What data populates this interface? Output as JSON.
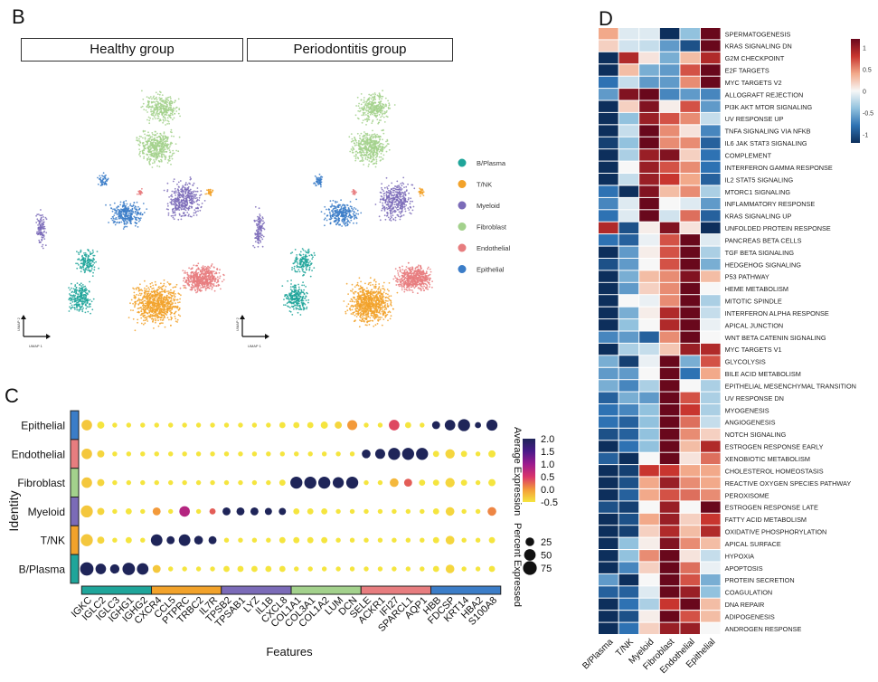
{
  "panels": {
    "b": {
      "letter": "B",
      "facets": [
        "Healthy group",
        "Periodontitis group"
      ],
      "axis_x": "UMAP 1",
      "axis_y": "UMAP 2"
    },
    "c": {
      "letter": "C"
    },
    "d": {
      "letter": "D"
    }
  },
  "chart_data": [
    {
      "type": "scatter",
      "name": "umap",
      "title": "",
      "facets": [
        "Healthy group",
        "Periodontitis group"
      ],
      "xlabel": "UMAP 1",
      "ylabel": "UMAP 2",
      "legend_position": "right",
      "legend": [
        {
          "label": "B/Plasma",
          "color": "#1fa59a"
        },
        {
          "label": "T/NK",
          "color": "#f2a22a"
        },
        {
          "label": "Myeloid",
          "color": "#7b6bb8"
        },
        {
          "label": "Fibroblast",
          "color": "#a3d18c"
        },
        {
          "label": "Endothelial",
          "color": "#e77d7f"
        },
        {
          "label": "Epithelial",
          "color": "#3b7dc8"
        }
      ],
      "clusters": [
        {
          "cell_type": "Fibroblast",
          "center": [
            0.62,
            0.12
          ],
          "spread": [
            0.1,
            0.07
          ],
          "n": 300
        },
        {
          "cell_type": "Fibroblast",
          "center": [
            0.6,
            0.26
          ],
          "spread": [
            0.11,
            0.08
          ],
          "n": 450
        },
        {
          "cell_type": "Myeloid",
          "center": [
            0.72,
            0.45
          ],
          "spread": [
            0.1,
            0.09
          ],
          "n": 380
        },
        {
          "cell_type": "Myeloid",
          "center": [
            0.1,
            0.55
          ],
          "spread": [
            0.03,
            0.09
          ],
          "n": 120
        },
        {
          "cell_type": "Epithelial",
          "center": [
            0.47,
            0.5
          ],
          "spread": [
            0.1,
            0.06
          ],
          "n": 300
        },
        {
          "cell_type": "Epithelial",
          "center": [
            0.37,
            0.38
          ],
          "spread": [
            0.03,
            0.03
          ],
          "n": 50
        },
        {
          "cell_type": "Endothelial",
          "center": [
            0.53,
            0.42
          ],
          "spread": [
            0.015,
            0.015
          ],
          "n": 20
        },
        {
          "cell_type": "T/NK",
          "center": [
            0.83,
            0.42
          ],
          "spread": [
            0.02,
            0.02
          ],
          "n": 30
        },
        {
          "cell_type": "B/Plasma",
          "center": [
            0.3,
            0.67
          ],
          "spread": [
            0.06,
            0.06
          ],
          "n": 160
        },
        {
          "cell_type": "B/Plasma",
          "center": [
            0.27,
            0.8
          ],
          "spread": [
            0.07,
            0.07
          ],
          "n": 250
        },
        {
          "cell_type": "T/NK",
          "center": [
            0.6,
            0.82
          ],
          "spread": [
            0.13,
            0.1
          ],
          "n": 800
        },
        {
          "cell_type": "Endothelial",
          "center": [
            0.8,
            0.73
          ],
          "spread": [
            0.11,
            0.06
          ],
          "n": 550
        }
      ]
    },
    {
      "type": "scatter",
      "name": "dotplot",
      "xlabel": "Features",
      "ylabel": "Identity",
      "rows": [
        "Epithelial",
        "Endothelial",
        "Fibroblast",
        "Myeloid",
        "T/NK",
        "B/Plasma"
      ],
      "row_colors": [
        "#3b7dc8",
        "#e77d7f",
        "#a3d18c",
        "#7b6bb8",
        "#f2a22a",
        "#1fa59a"
      ],
      "features": [
        "IGKC",
        "IGLC2",
        "IGLC3",
        "IGHG1",
        "IGHG2",
        "CXCR4",
        "CCL5",
        "PTPRC",
        "TRBC2",
        "IL7R",
        "TPSB2",
        "TPSAB1",
        "LYZ",
        "IL1B",
        "CXCL8",
        "COL1A1",
        "COL3A1",
        "COL1A2",
        "LUM",
        "DCN",
        "SELE",
        "ACKR1",
        "IFI27",
        "SPARCL1",
        "AQP1",
        "HBB",
        "FDCSP",
        "KRT14",
        "HBA2",
        "S100A8"
      ],
      "feature_groups": [
        {
          "group": "B/Plasma",
          "color": "#1fa59a",
          "count": 5
        },
        {
          "group": "T/NK",
          "color": "#f2a22a",
          "count": 5
        },
        {
          "group": "Myeloid",
          "color": "#7b6bb8",
          "count": 5
        },
        {
          "group": "Fibroblast",
          "color": "#a3d18c",
          "count": 5
        },
        {
          "group": "Endothelial",
          "color": "#e77d7f",
          "count": 5
        },
        {
          "group": "Epithelial",
          "color": "#3b7dc8",
          "count": 5
        }
      ],
      "avg_expression": [
        [
          -0.3,
          -0.5,
          -0.5,
          -0.5,
          -0.5,
          -0.5,
          -0.5,
          -0.5,
          -0.5,
          -0.5,
          -0.5,
          -0.5,
          -0.5,
          -0.5,
          -0.5,
          -0.5,
          -0.5,
          -0.5,
          -0.4,
          0.0,
          -0.5,
          -0.5,
          0.4,
          -0.5,
          -0.5,
          2.0,
          2.0,
          2.0,
          2.0,
          2.0
        ],
        [
          -0.3,
          -0.4,
          -0.5,
          -0.5,
          -0.5,
          -0.5,
          -0.5,
          -0.5,
          -0.5,
          -0.5,
          -0.5,
          -0.5,
          -0.5,
          -0.5,
          -0.5,
          -0.5,
          -0.5,
          -0.5,
          -0.5,
          -0.5,
          2.0,
          2.0,
          2.0,
          2.0,
          2.0,
          -0.5,
          -0.4,
          -0.5,
          -0.5,
          -0.5
        ],
        [
          -0.3,
          -0.4,
          -0.5,
          -0.5,
          -0.5,
          -0.5,
          -0.5,
          -0.5,
          -0.5,
          -0.5,
          -0.5,
          -0.5,
          -0.5,
          -0.5,
          -0.5,
          2.0,
          2.0,
          2.0,
          2.0,
          2.0,
          -0.5,
          -0.5,
          -0.2,
          0.3,
          -0.5,
          -0.5,
          -0.4,
          -0.5,
          -0.5,
          -0.5
        ],
        [
          -0.3,
          -0.4,
          -0.5,
          -0.5,
          -0.5,
          0.0,
          -0.5,
          0.8,
          -0.5,
          0.3,
          2.0,
          2.0,
          2.0,
          2.0,
          2.0,
          -0.5,
          -0.5,
          -0.5,
          -0.5,
          -0.5,
          -0.5,
          -0.5,
          -0.5,
          -0.5,
          -0.5,
          -0.5,
          -0.4,
          -0.5,
          -0.5,
          0.1
        ],
        [
          -0.3,
          -0.4,
          -0.5,
          -0.5,
          -0.5,
          2.0,
          2.0,
          2.0,
          2.0,
          2.0,
          -0.5,
          -0.5,
          -0.5,
          -0.5,
          -0.5,
          -0.5,
          -0.5,
          -0.5,
          -0.5,
          -0.5,
          -0.5,
          -0.5,
          -0.5,
          -0.5,
          -0.5,
          -0.5,
          -0.4,
          -0.5,
          -0.5,
          -0.5
        ],
        [
          2.0,
          2.0,
          2.0,
          2.0,
          2.0,
          -0.3,
          -0.5,
          -0.5,
          -0.5,
          -0.5,
          -0.5,
          -0.5,
          -0.5,
          -0.5,
          -0.5,
          -0.5,
          -0.5,
          -0.5,
          -0.5,
          -0.5,
          -0.5,
          -0.5,
          -0.5,
          -0.5,
          -0.5,
          -0.5,
          -0.4,
          -0.5,
          -0.5,
          -0.5
        ]
      ],
      "pct_expressed": [
        [
          40,
          15,
          5,
          5,
          5,
          5,
          5,
          5,
          5,
          5,
          5,
          5,
          5,
          5,
          10,
          10,
          10,
          15,
          15,
          35,
          5,
          5,
          40,
          10,
          5,
          20,
          40,
          55,
          10,
          45
        ],
        [
          40,
          15,
          5,
          5,
          5,
          5,
          5,
          5,
          5,
          5,
          5,
          5,
          5,
          5,
          5,
          5,
          5,
          5,
          5,
          5,
          25,
          35,
          55,
          55,
          55,
          10,
          30,
          10,
          5,
          15
        ],
        [
          40,
          15,
          5,
          5,
          5,
          5,
          5,
          5,
          5,
          5,
          5,
          5,
          5,
          5,
          10,
          55,
          55,
          55,
          45,
          55,
          5,
          5,
          25,
          20,
          10,
          10,
          30,
          10,
          5,
          15
        ],
        [
          55,
          15,
          5,
          10,
          5,
          20,
          5,
          40,
          5,
          10,
          20,
          20,
          20,
          15,
          15,
          10,
          10,
          10,
          5,
          5,
          5,
          5,
          5,
          5,
          5,
          10,
          25,
          5,
          5,
          25
        ],
        [
          55,
          15,
          5,
          10,
          5,
          50,
          20,
          50,
          25,
          20,
          5,
          5,
          5,
          5,
          10,
          10,
          10,
          10,
          5,
          5,
          5,
          5,
          5,
          5,
          5,
          10,
          25,
          5,
          5,
          10
        ],
        [
          70,
          40,
          30,
          60,
          50,
          20,
          5,
          5,
          5,
          5,
          10,
          10,
          10,
          10,
          10,
          5,
          5,
          5,
          5,
          5,
          5,
          5,
          5,
          5,
          5,
          10,
          25,
          5,
          5,
          10
        ]
      ],
      "color_scale": {
        "label": "Average Expression",
        "min": -0.5,
        "max": 2.0,
        "ticks": [
          "2.0",
          "1.5",
          "1.0",
          "0.5",
          "0.0",
          "-0.5"
        ],
        "colors": [
          "#f5e53f",
          "#f39a3a",
          "#d9346b",
          "#9b1b8e",
          "#4a1a8a",
          "#1f2559"
        ]
      },
      "size_scale": {
        "label": "Percent Expressed",
        "ticks": [
          "25",
          "50",
          "75"
        ]
      }
    },
    {
      "type": "heatmap",
      "name": "pathway-heatmap",
      "columns": [
        "B/Plasma",
        "T/NK",
        "Myeloid",
        "Fibroblast",
        "Endothelial",
        "Epithelial"
      ],
      "rows": [
        "SPERMATOGENESIS",
        "KRAS SIGNALING DN",
        "G2M CHECKPOINT",
        "E2F TARGETS",
        "MYC TARGETS V2",
        "ALLOGRAFT REJECTION",
        "PI3K AKT MTOR SIGNALING",
        "UV RESPONSE UP",
        "TNFA SIGNALING VIA NFKB",
        "IL6 JAK STAT3 SIGNALING",
        "COMPLEMENT",
        "INTERFERON GAMMA RESPONSE",
        "IL2 STAT5 SIGNALING",
        "MTORC1 SIGNALING",
        "INFLAMMATORY RESPONSE",
        "KRAS SIGNALING UP",
        "UNFOLDED PROTEIN RESPONSE",
        "PANCREAS BETA CELLS",
        "TGF BETA SIGNALING",
        "HEDGEHOG SIGNALING",
        "P53 PATHWAY",
        "HEME METABOLISM",
        "MITOTIC SPINDLE",
        "INTERFERON ALPHA RESPONSE",
        "APICAL JUNCTION",
        "WNT BETA CATENIN SIGNALING",
        "MYC TARGETS V1",
        "GLYCOLYSIS",
        "BILE ACID METABOLISM",
        "EPITHELIAL MESENCHYMAL TRANSITION",
        "UV RESPONSE DN",
        "MYOGENESIS",
        "ANGIOGENESIS",
        "NOTCH SIGNALING",
        "ESTROGEN RESPONSE EARLY",
        "XENOBIOTIC METABOLISM",
        "CHOLESTEROL HOMEOSTASIS",
        "REACTIVE OXYGEN SPECIES PATHWAY",
        "PEROXISOME",
        "ESTROGEN RESPONSE LATE",
        "FATTY ACID METABOLISM",
        "OXIDATIVE PHOSPHORYLATION",
        "APICAL SURFACE",
        "HYPOXIA",
        "APOPTOSIS",
        "PROTEIN SECRETION",
        "COAGULATION",
        "DNA REPAIR",
        "ADIPOGENESIS",
        "ANDROGEN RESPONSE"
      ],
      "values": [
        [
          0.4,
          -0.1,
          -0.1,
          -1.2,
          -0.4,
          1.2
        ],
        [
          0.2,
          -0.15,
          -0.2,
          -0.6,
          -1.0,
          1.2
        ],
        [
          -1.2,
          0.9,
          0.1,
          -0.5,
          0.3,
          0.9
        ],
        [
          -1.2,
          0.3,
          -0.5,
          -0.6,
          0.7,
          1.2
        ],
        [
          -0.8,
          -0.2,
          -0.6,
          -0.6,
          0.5,
          1.2
        ],
        [
          -0.6,
          1.1,
          1.2,
          -0.7,
          -0.6,
          -0.7
        ],
        [
          -1.2,
          0.2,
          1.1,
          0.05,
          0.7,
          -0.6
        ],
        [
          -1.2,
          -0.4,
          1.0,
          0.7,
          0.5,
          -0.2
        ],
        [
          -1.2,
          -0.2,
          1.2,
          0.5,
          0.1,
          -0.7
        ],
        [
          -1.1,
          -0.4,
          1.2,
          0.5,
          0.5,
          -0.9
        ],
        [
          -1.2,
          -0.3,
          1.0,
          1.1,
          0.2,
          -0.8
        ],
        [
          -1.2,
          0.0,
          1.0,
          0.7,
          0.5,
          -0.8
        ],
        [
          -1.2,
          -0.2,
          1.0,
          0.8,
          0.4,
          -0.9
        ],
        [
          -0.8,
          -1.2,
          1.1,
          0.3,
          0.5,
          -0.3
        ],
        [
          -0.7,
          -0.1,
          1.2,
          0.0,
          -0.1,
          -0.6
        ],
        [
          -0.8,
          -0.1,
          1.2,
          -0.15,
          0.6,
          -0.9
        ],
        [
          0.9,
          -1.0,
          0.05,
          1.1,
          0.1,
          -1.2
        ],
        [
          -0.8,
          -0.9,
          -0.05,
          0.7,
          1.2,
          -0.1
        ],
        [
          -1.2,
          -0.6,
          0.05,
          0.7,
          1.2,
          -0.3
        ],
        [
          -1.0,
          -0.6,
          0.0,
          0.7,
          1.2,
          -0.5
        ],
        [
          -1.2,
          -0.5,
          0.3,
          0.5,
          1.1,
          0.3
        ],
        [
          -1.2,
          -0.6,
          0.2,
          0.5,
          1.2,
          0.0
        ],
        [
          -1.2,
          0.0,
          -0.05,
          0.5,
          1.2,
          -0.3
        ],
        [
          -1.2,
          -0.5,
          0.05,
          0.9,
          1.2,
          -0.2
        ],
        [
          -1.2,
          -0.4,
          0.0,
          0.9,
          1.2,
          -0.05
        ],
        [
          -0.7,
          -0.6,
          -0.9,
          0.5,
          1.2,
          0.0
        ],
        [
          -1.2,
          -0.3,
          -0.2,
          0.25,
          1.0,
          0.9
        ],
        [
          -0.5,
          -1.1,
          -0.05,
          1.2,
          -0.5,
          0.7
        ],
        [
          -0.6,
          -0.6,
          0.0,
          1.2,
          -0.8,
          0.4
        ],
        [
          -0.5,
          -0.7,
          -0.3,
          1.2,
          0.0,
          -0.3
        ],
        [
          -0.9,
          -0.5,
          -0.6,
          1.2,
          0.7,
          -0.3
        ],
        [
          -0.8,
          -0.7,
          -0.4,
          1.2,
          0.8,
          -0.3
        ],
        [
          -0.8,
          -0.9,
          -0.4,
          1.2,
          0.6,
          -0.2
        ],
        [
          -1.0,
          -0.9,
          -0.4,
          1.2,
          0.5,
          0.2
        ],
        [
          -1.2,
          -0.8,
          -0.4,
          1.2,
          0.3,
          0.9
        ],
        [
          -0.9,
          -1.2,
          0.0,
          1.2,
          0.1,
          0.6
        ],
        [
          -1.2,
          -1.1,
          0.8,
          0.8,
          0.4,
          0.4
        ],
        [
          -1.2,
          -1.0,
          0.4,
          1.0,
          0.5,
          0.4
        ],
        [
          -1.2,
          -0.9,
          0.4,
          0.7,
          0.6,
          0.5
        ],
        [
          -1.0,
          -1.1,
          0.0,
          1.0,
          0.0,
          1.2
        ],
        [
          -1.2,
          -1.0,
          0.4,
          1.0,
          0.2,
          0.8
        ],
        [
          -1.2,
          -1.1,
          0.2,
          0.9,
          0.3,
          0.9
        ],
        [
          -1.2,
          -0.4,
          0.05,
          1.1,
          0.5,
          0.3
        ],
        [
          -1.2,
          -0.4,
          0.5,
          1.2,
          0.1,
          -0.2
        ],
        [
          -1.2,
          -0.7,
          0.2,
          1.2,
          0.6,
          -0.05
        ],
        [
          -0.6,
          -1.2,
          0.0,
          1.2,
          0.7,
          -0.5
        ],
        [
          -0.9,
          -0.9,
          -0.1,
          1.2,
          1.0,
          -0.4
        ],
        [
          -1.2,
          -0.8,
          -0.3,
          0.8,
          1.2,
          0.3
        ],
        [
          -1.2,
          -1.0,
          0.05,
          1.2,
          0.7,
          0.3
        ],
        [
          -1.2,
          -0.8,
          0.2,
          1.0,
          1.0,
          0.0
        ]
      ],
      "color_scale": {
        "min": -1.2,
        "max": 1.2,
        "ticks": [
          "1",
          "0.5",
          "0",
          "-0.5",
          "-1"
        ],
        "colors": [
          "#0d2f5c",
          "#2e72b3",
          "#92c2de",
          "#f7f7f7",
          "#f2a98a",
          "#c8352f",
          "#69081c"
        ]
      },
      "legend_position": "top-right"
    }
  ]
}
